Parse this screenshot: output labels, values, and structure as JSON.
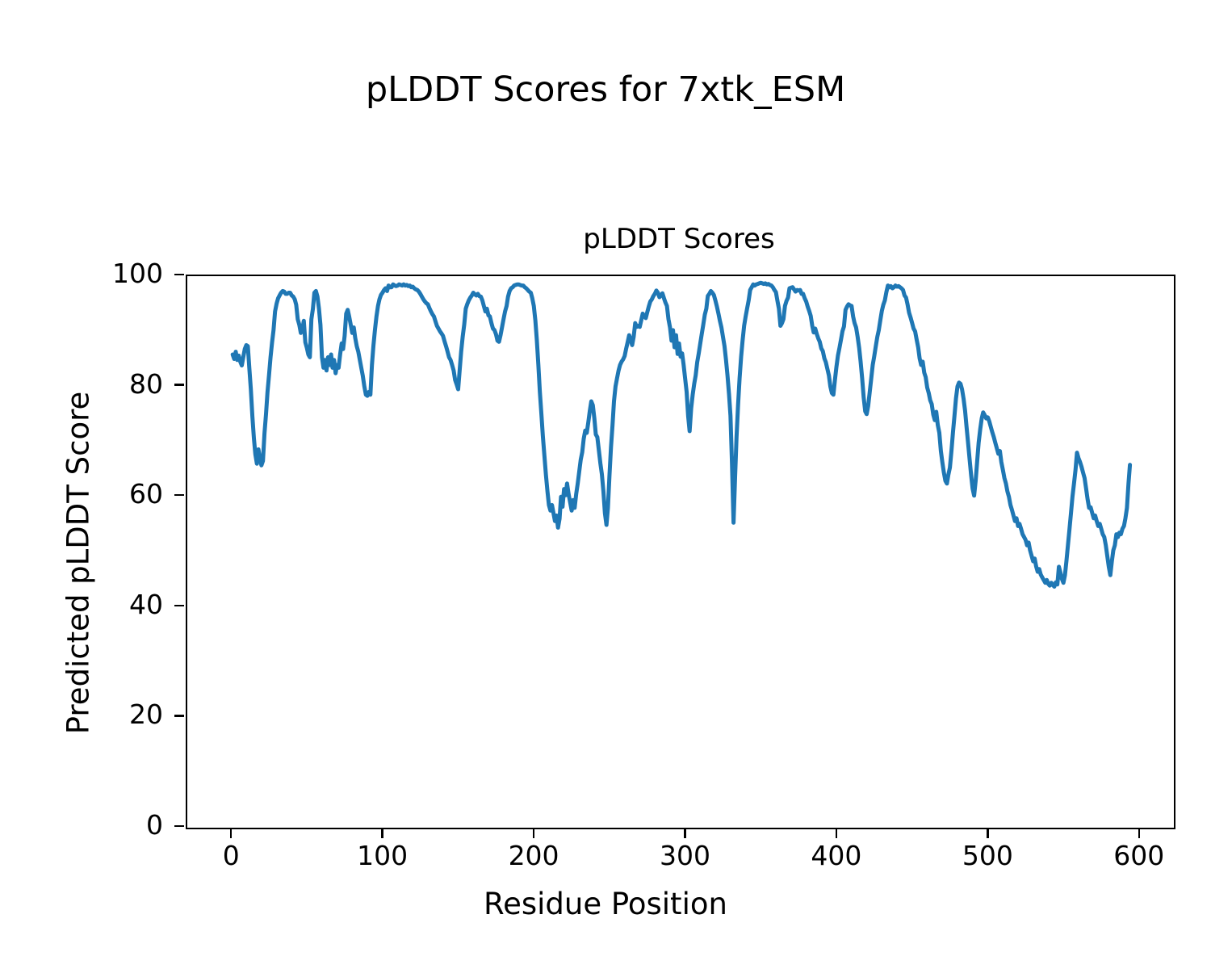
{
  "figure": {
    "suptitle": "pLDDT Scores for 7xtk_ESM",
    "background": "#ffffff",
    "text_color": "#000000"
  },
  "chart_data": {
    "type": "line",
    "title": "pLDDT Scores",
    "xlabel": "Residue Position",
    "ylabel": "Predicted pLDDT Score",
    "xlim": [
      -30,
      622
    ],
    "ylim": [
      0,
      100
    ],
    "xticks": [
      0,
      100,
      200,
      300,
      400,
      500,
      600
    ],
    "yticks": [
      0,
      20,
      40,
      60,
      80,
      100
    ],
    "grid": false,
    "legend_position": "none",
    "line_color": "#1f77b4",
    "line_width": 5,
    "series": [
      {
        "name": "pLDDT",
        "x_start": 0,
        "x_step": 1,
        "y": [
          85.8,
          85.0,
          86.3,
          84.8,
          85.6,
          84.5,
          83.8,
          85.3,
          86.8,
          87.5,
          87.3,
          83.4,
          79.5,
          74.6,
          70.6,
          67.7,
          66.0,
          68.6,
          67.0,
          65.7,
          66.5,
          71.5,
          75.0,
          78.9,
          82.0,
          85.3,
          88.0,
          90.2,
          93.6,
          95.0,
          96.0,
          96.5,
          97.0,
          97.3,
          97.2,
          96.8,
          96.8,
          97.0,
          97.0,
          96.5,
          96.3,
          95.8,
          94.8,
          92.2,
          91.2,
          89.7,
          90.3,
          91.9,
          88.0,
          87.0,
          85.8,
          85.3,
          92.2,
          94.1,
          97.0,
          97.3,
          96.3,
          94.1,
          91.2,
          85.3,
          83.4,
          84.8,
          82.9,
          85.3,
          83.9,
          85.8,
          83.4,
          84.8,
          82.4,
          83.9,
          83.4,
          85.8,
          87.8,
          86.8,
          89.2,
          93.2,
          93.9,
          92.7,
          91.2,
          89.7,
          90.7,
          88.8,
          87.3,
          86.3,
          84.8,
          83.4,
          81.9,
          80.0,
          78.5,
          78.3,
          79.0,
          78.5,
          83.9,
          87.3,
          90.2,
          92.7,
          94.6,
          95.8,
          96.6,
          97.0,
          97.5,
          97.8,
          97.3,
          98.3,
          98.0,
          98.0,
          98.5,
          98.3,
          98.2,
          98.3,
          98.5,
          98.4,
          98.3,
          98.5,
          98.3,
          98.4,
          98.2,
          98.3,
          98.0,
          98.1,
          97.8,
          97.6,
          97.5,
          97.2,
          96.8,
          96.3,
          95.8,
          95.4,
          95.1,
          94.9,
          94.2,
          93.6,
          93.1,
          92.7,
          91.8,
          91.0,
          90.5,
          90.0,
          89.6,
          89.2,
          88.2,
          87.3,
          86.3,
          85.3,
          84.8,
          83.9,
          82.9,
          81.2,
          80.4,
          79.5,
          83.0,
          86.3,
          89.0,
          91.2,
          94.1,
          94.9,
          95.6,
          96.1,
          96.5,
          97.0,
          96.7,
          96.5,
          96.8,
          96.4,
          96.3,
          95.6,
          94.6,
          93.6,
          94.1,
          92.9,
          92.7,
          91.5,
          90.5,
          90.2,
          89.5,
          88.3,
          88.1,
          89.3,
          90.7,
          92.2,
          93.6,
          94.6,
          96.3,
          97.3,
          97.8,
          98.0,
          98.3,
          98.4,
          98.5,
          98.5,
          98.4,
          98.3,
          98.3,
          98.0,
          97.8,
          97.5,
          97.2,
          97.0,
          96.0,
          94.6,
          92.0,
          88.5,
          84.0,
          79.0,
          75.0,
          71.0,
          67.5,
          64.0,
          61.0,
          58.5,
          57.5,
          58.5,
          57.0,
          55.6,
          56.6,
          54.4,
          56.0,
          60.0,
          58.2,
          61.4,
          60.3,
          62.4,
          60.5,
          59.0,
          57.5,
          59.4,
          58.0,
          60.5,
          62.4,
          64.5,
          66.7,
          68.1,
          70.5,
          72.0,
          71.6,
          73.5,
          75.5,
          77.3,
          76.6,
          74.2,
          71.3,
          70.8,
          68.4,
          66.0,
          64.1,
          61.0,
          57.0,
          54.9,
          58.0,
          63.8,
          69.0,
          73.0,
          77.3,
          80.0,
          81.5,
          82.9,
          83.9,
          84.5,
          84.9,
          85.5,
          86.8,
          88.0,
          89.3,
          88.5,
          87.5,
          89.0,
          91.5,
          90.8,
          91.0,
          90.8,
          92.0,
          93.2,
          92.8,
          92.4,
          93.5,
          94.5,
          95.4,
          95.8,
          96.4,
          96.8,
          97.4,
          97.0,
          96.2,
          96.5,
          96.9,
          96.0,
          95.2,
          94.6,
          92.2,
          90.7,
          88.3,
          90.2,
          87.1,
          89.3,
          85.9,
          87.8,
          85.4,
          86.0,
          84.0,
          81.5,
          79.0,
          74.6,
          71.9,
          76.0,
          78.5,
          80.5,
          82.0,
          84.4,
          86.0,
          87.8,
          89.5,
          91.2,
          93.0,
          94.1,
          96.4,
          96.8,
          97.3,
          97.0,
          96.6,
          95.6,
          94.5,
          93.2,
          91.9,
          90.7,
          89.0,
          87.3,
          84.9,
          82.0,
          78.6,
          74.7,
          65.9,
          55.3,
          63.5,
          70.8,
          76.6,
          81.5,
          85.4,
          88.3,
          91.0,
          92.7,
          94.2,
          95.6,
          97.5,
          98.0,
          98.5,
          98.3,
          98.5,
          98.6,
          98.7,
          98.8,
          98.7,
          98.6,
          98.7,
          98.5,
          98.6,
          98.4,
          98.3,
          98.0,
          97.5,
          97.1,
          95.5,
          94.1,
          91.0,
          91.5,
          92.2,
          94.6,
          95.5,
          96.1,
          97.8,
          97.9,
          98.0,
          97.6,
          97.2,
          97.5,
          97.4,
          97.5,
          96.8,
          96.8,
          96.0,
          95.4,
          94.5,
          93.7,
          92.8,
          91.0,
          89.8,
          90.5,
          89.5,
          88.7,
          88.1,
          86.9,
          86.4,
          85.1,
          84.4,
          83.2,
          82.0,
          80.0,
          78.8,
          78.5,
          81.2,
          83.5,
          85.6,
          87.0,
          88.5,
          90.0,
          90.9,
          93.9,
          94.5,
          94.9,
          94.7,
          94.6,
          92.7,
          91.5,
          90.7,
          89.0,
          87.0,
          84.5,
          81.5,
          78.0,
          75.5,
          75.0,
          76.5,
          79.0,
          81.5,
          83.9,
          85.5,
          87.3,
          89.0,
          90.2,
          92.0,
          93.7,
          94.8,
          95.6,
          97.1,
          98.3,
          98.0,
          98.2,
          97.8,
          98.0,
          98.3,
          98.1,
          98.2,
          98.0,
          97.8,
          97.5,
          96.5,
          96.1,
          94.9,
          93.4,
          92.5,
          91.5,
          90.5,
          90.0,
          88.5,
          87.1,
          85.1,
          83.9,
          84.5,
          82.5,
          81.7,
          79.8,
          78.8,
          77.5,
          76.8,
          74.9,
          73.9,
          75.4,
          73.0,
          71.6,
          68.3,
          66.3,
          64.4,
          62.9,
          62.4,
          64.0,
          65.3,
          68.3,
          71.7,
          74.6,
          77.8,
          80.0,
          80.7,
          80.5,
          79.5,
          77.8,
          75.6,
          72.7,
          69.8,
          66.8,
          63.9,
          61.5,
          60.2,
          62.9,
          66.3,
          69.8,
          72.2,
          74.2,
          75.3,
          74.8,
          74.2,
          74.4,
          73.7,
          72.7,
          71.7,
          70.8,
          69.8,
          68.8,
          67.8,
          68.3,
          66.3,
          64.9,
          63.4,
          62.4,
          61.0,
          60.0,
          58.5,
          57.6,
          56.6,
          55.6,
          56.1,
          54.7,
          55.1,
          54.2,
          53.2,
          52.7,
          52.2,
          51.2,
          51.7,
          50.3,
          49.3,
          48.3,
          48.8,
          47.4,
          46.4,
          46.9,
          45.9,
          45.4,
          44.9,
          44.4,
          44.9,
          44.2,
          43.9,
          44.4,
          44.0,
          43.7,
          44.5,
          44.1,
          47.3,
          46.3,
          45.1,
          44.4,
          45.8,
          48.3,
          51.2,
          54.1,
          57.1,
          60.0,
          62.4,
          64.9,
          68.0,
          67.0,
          66.3,
          65.4,
          64.4,
          63.4,
          61.5,
          59.5,
          58.0,
          58.1,
          57.1,
          56.1,
          56.6,
          55.6,
          54.7,
          55.1,
          54.2,
          53.2,
          52.7,
          51.2,
          49.3,
          47.3,
          45.8,
          48.3,
          50.3,
          51.2,
          53.2,
          52.7,
          53.5,
          53.2,
          54.2,
          54.7,
          56.1,
          58.0,
          62.4,
          65.8
        ]
      }
    ]
  }
}
